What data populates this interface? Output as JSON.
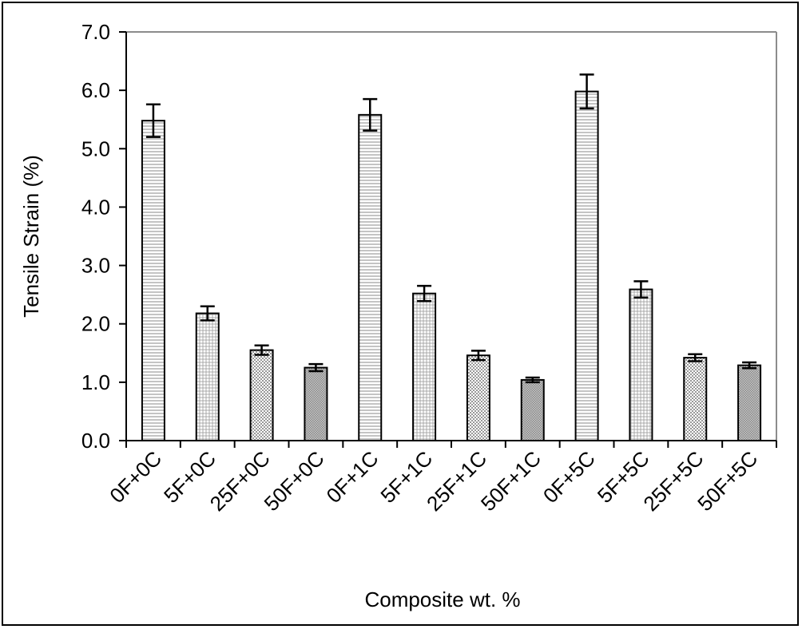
{
  "chart_data": {
    "type": "bar",
    "title": "",
    "xlabel": "Composite wt. %",
    "ylabel": "Tensile Strain (%)",
    "ylim": [
      0,
      7
    ],
    "yticks": [
      "0.0",
      "1.0",
      "2.0",
      "3.0",
      "4.0",
      "5.0",
      "6.0",
      "7.0"
    ],
    "grid": false,
    "legend": "none",
    "categories": [
      "0F+0C",
      "5F+0C",
      "25F+0C",
      "50F+0C",
      "0F+1C",
      "5F+1C",
      "25F+1C",
      "50F+1C",
      "0F+5C",
      "5F+5C",
      "25F+5C",
      "50F+5C"
    ],
    "values": [
      5.48,
      2.18,
      1.55,
      1.25,
      5.58,
      2.52,
      1.46,
      1.04,
      5.98,
      2.59,
      1.42,
      1.29
    ],
    "errors": [
      0.28,
      0.12,
      0.08,
      0.06,
      0.27,
      0.13,
      0.08,
      0.04,
      0.29,
      0.14,
      0.06,
      0.05
    ],
    "patterns": [
      "hlines",
      "grid",
      "checker",
      "dots",
      "hlines",
      "grid",
      "checker",
      "dots",
      "hlines",
      "grid",
      "checker",
      "dots"
    ]
  }
}
